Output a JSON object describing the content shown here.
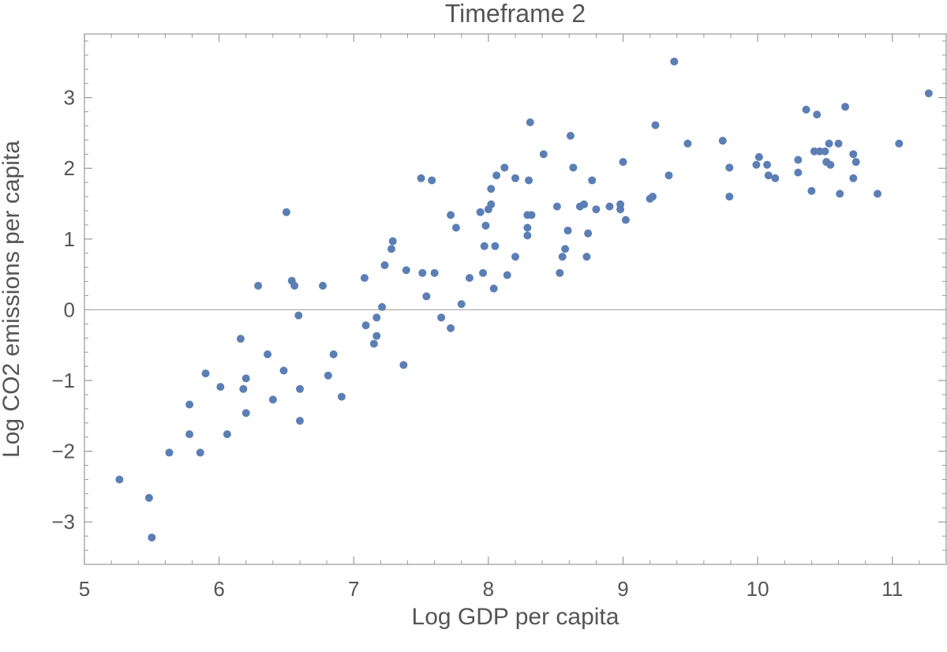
{
  "chart_data": {
    "type": "scatter",
    "title": "Timeframe 2",
    "xlabel": "Log GDP per capita",
    "ylabel": "Log CO2 emissions per capita",
    "xlim": [
      5.0,
      11.4
    ],
    "ylim": [
      -3.6,
      3.9
    ],
    "xticks": [
      5,
      6,
      7,
      8,
      9,
      10,
      11
    ],
    "yticks": [
      -3,
      -2,
      -1,
      0,
      1,
      2,
      3
    ],
    "ytick_labels": [
      "−3",
      "−2",
      "−1",
      "0",
      "1",
      "2",
      "3"
    ],
    "xticks_minor": [
      5.2,
      5.4,
      5.6,
      5.8,
      6.2,
      6.4,
      6.6,
      6.8,
      7.2,
      7.4,
      7.6,
      7.8,
      8.2,
      8.4,
      8.6,
      8.8,
      9.2,
      9.4,
      9.6,
      9.8,
      10.2,
      10.4,
      10.6,
      10.8,
      11.2,
      11.4
    ],
    "yticks_minor": [
      -3.4,
      -3.2,
      -2.8,
      -2.6,
      -2.4,
      -2.2,
      -1.8,
      -1.6,
      -1.4,
      -1.2,
      -0.8,
      -0.6,
      -0.4,
      -0.2,
      0.2,
      0.4,
      0.6,
      0.8,
      1.2,
      1.4,
      1.6,
      1.8,
      2.2,
      2.4,
      2.6,
      2.8,
      3.2,
      3.4,
      3.6,
      3.8
    ],
    "zero_line": true,
    "grid": false,
    "marker_color": "#5b7fb5",
    "points": [
      [
        5.26,
        -2.4
      ],
      [
        5.48,
        -2.66
      ],
      [
        5.5,
        -3.22
      ],
      [
        5.63,
        -2.02
      ],
      [
        5.78,
        -1.34
      ],
      [
        5.78,
        -1.76
      ],
      [
        5.86,
        -2.02
      ],
      [
        5.9,
        -0.9
      ],
      [
        6.01,
        -1.09
      ],
      [
        6.06,
        -1.76
      ],
      [
        6.16,
        -0.41
      ],
      [
        6.18,
        -1.12
      ],
      [
        6.2,
        -0.97
      ],
      [
        6.2,
        -1.46
      ],
      [
        6.29,
        0.34
      ],
      [
        6.36,
        -0.63
      ],
      [
        6.4,
        -1.27
      ],
      [
        6.48,
        -0.86
      ],
      [
        6.5,
        1.38
      ],
      [
        6.54,
        0.41
      ],
      [
        6.56,
        0.34
      ],
      [
        6.59,
        -0.08
      ],
      [
        6.6,
        -1.12
      ],
      [
        6.6,
        -1.57
      ],
      [
        6.77,
        0.34
      ],
      [
        6.81,
        -0.93
      ],
      [
        6.85,
        -0.63
      ],
      [
        6.91,
        -1.23
      ],
      [
        7.08,
        0.45
      ],
      [
        7.09,
        -0.22
      ],
      [
        7.15,
        -0.48
      ],
      [
        7.17,
        -0.37
      ],
      [
        7.17,
        -0.11
      ],
      [
        7.21,
        0.04
      ],
      [
        7.23,
        0.63
      ],
      [
        7.28,
        0.86
      ],
      [
        7.29,
        0.97
      ],
      [
        7.37,
        -0.78
      ],
      [
        7.39,
        0.56
      ],
      [
        7.5,
        1.86
      ],
      [
        7.51,
        0.52
      ],
      [
        7.54,
        0.19
      ],
      [
        7.58,
        1.83
      ],
      [
        7.6,
        0.52
      ],
      [
        7.65,
        -0.11
      ],
      [
        7.72,
        -0.26
      ],
      [
        7.72,
        1.34
      ],
      [
        7.76,
        1.16
      ],
      [
        7.8,
        0.08
      ],
      [
        7.86,
        0.45
      ],
      [
        7.94,
        1.38
      ],
      [
        7.96,
        0.52
      ],
      [
        7.97,
        0.9
      ],
      [
        7.98,
        1.19
      ],
      [
        8.0,
        1.42
      ],
      [
        8.02,
        1.49
      ],
      [
        8.02,
        1.71
      ],
      [
        8.04,
        0.3
      ],
      [
        8.05,
        0.9
      ],
      [
        8.06,
        1.9
      ],
      [
        8.12,
        2.01
      ],
      [
        8.14,
        0.49
      ],
      [
        8.2,
        0.75
      ],
      [
        8.2,
        1.86
      ],
      [
        8.29,
        1.34
      ],
      [
        8.29,
        1.16
      ],
      [
        8.29,
        1.05
      ],
      [
        8.3,
        1.83
      ],
      [
        8.31,
        2.65
      ],
      [
        8.32,
        1.34
      ],
      [
        8.41,
        2.2
      ],
      [
        8.51,
        1.46
      ],
      [
        8.53,
        0.52
      ],
      [
        8.55,
        0.75
      ],
      [
        8.57,
        0.86
      ],
      [
        8.59,
        1.12
      ],
      [
        8.61,
        2.46
      ],
      [
        8.63,
        2.01
      ],
      [
        8.68,
        1.46
      ],
      [
        8.71,
        1.49
      ],
      [
        8.73,
        0.75
      ],
      [
        8.74,
        1.08
      ],
      [
        8.77,
        1.83
      ],
      [
        8.8,
        1.42
      ],
      [
        8.9,
        1.46
      ],
      [
        8.98,
        1.49
      ],
      [
        8.98,
        1.42
      ],
      [
        9.0,
        2.09
      ],
      [
        9.02,
        1.27
      ],
      [
        9.2,
        1.57
      ],
      [
        9.22,
        1.6
      ],
      [
        9.24,
        2.61
      ],
      [
        9.34,
        1.9
      ],
      [
        9.38,
        3.51
      ],
      [
        9.48,
        2.35
      ],
      [
        9.74,
        2.39
      ],
      [
        9.79,
        1.6
      ],
      [
        9.79,
        2.01
      ],
      [
        9.99,
        2.05
      ],
      [
        10.01,
        2.16
      ],
      [
        10.07,
        2.05
      ],
      [
        10.08,
        1.9
      ],
      [
        10.13,
        1.86
      ],
      [
        10.3,
        1.94
      ],
      [
        10.3,
        2.12
      ],
      [
        10.36,
        2.83
      ],
      [
        10.4,
        1.68
      ],
      [
        10.42,
        2.24
      ],
      [
        10.44,
        2.76
      ],
      [
        10.46,
        2.24
      ],
      [
        10.5,
        2.24
      ],
      [
        10.51,
        2.09
      ],
      [
        10.53,
        2.35
      ],
      [
        10.54,
        2.05
      ],
      [
        10.6,
        2.35
      ],
      [
        10.61,
        1.64
      ],
      [
        10.65,
        2.87
      ],
      [
        10.71,
        2.2
      ],
      [
        10.71,
        1.86
      ],
      [
        10.73,
        2.09
      ],
      [
        10.89,
        1.64
      ],
      [
        11.05,
        2.35
      ],
      [
        11.27,
        3.06
      ]
    ]
  }
}
